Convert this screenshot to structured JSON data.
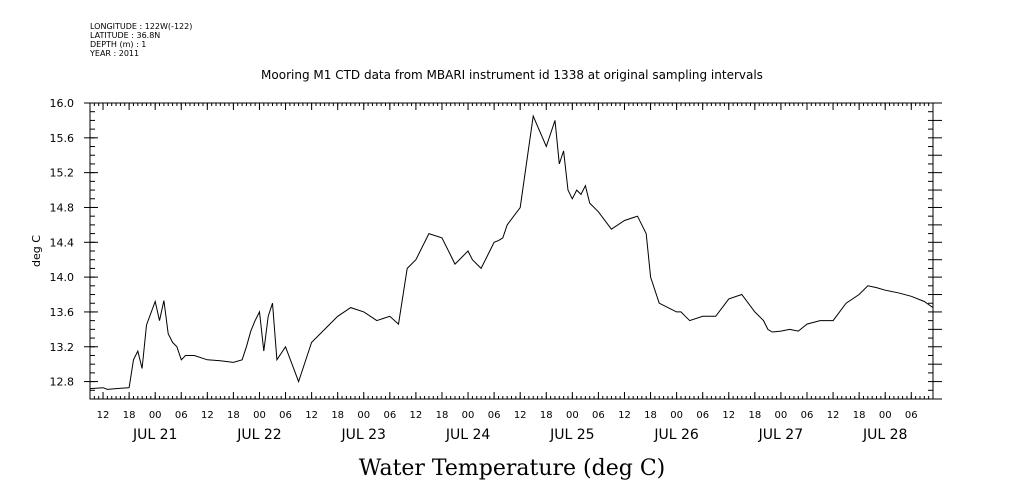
{
  "meta": {
    "longitude": "LONGITUDE : 122W(-122)",
    "latitude": "LATITUDE : 36.8N",
    "depth": "DEPTH (m) : 1",
    "year": "YEAR : 2011"
  },
  "chart_data": {
    "type": "line",
    "title": "Mooring M1 CTD data from MBARI instrument id 1338 at original sampling intervals",
    "xlabel": "Water Temperature (deg C)",
    "ylabel": "deg C",
    "ylim": [
      12.6,
      16.0
    ],
    "yticks": [
      12.8,
      13.2,
      13.6,
      14.0,
      14.4,
      14.8,
      15.2,
      15.6,
      16.0
    ],
    "ytick_labels": [
      "12.8",
      "13.2",
      "13.6",
      "14.0",
      "14.4",
      "14.8",
      "15.2",
      "15.6",
      "16.0"
    ],
    "xlim": [
      "2011-07-20T09:00",
      "2011-07-28T11:00"
    ],
    "hour_ticks": [
      {
        "t": "2011-07-20T12:00",
        "label": "12"
      },
      {
        "t": "2011-07-20T18:00",
        "label": "18"
      },
      {
        "t": "2011-07-21T00:00",
        "label": "00"
      },
      {
        "t": "2011-07-21T06:00",
        "label": "06"
      },
      {
        "t": "2011-07-21T12:00",
        "label": "12"
      },
      {
        "t": "2011-07-21T18:00",
        "label": "18"
      },
      {
        "t": "2011-07-22T00:00",
        "label": "00"
      },
      {
        "t": "2011-07-22T06:00",
        "label": "06"
      },
      {
        "t": "2011-07-22T12:00",
        "label": "12"
      },
      {
        "t": "2011-07-22T18:00",
        "label": "18"
      },
      {
        "t": "2011-07-23T00:00",
        "label": "00"
      },
      {
        "t": "2011-07-23T06:00",
        "label": "06"
      },
      {
        "t": "2011-07-23T12:00",
        "label": "12"
      },
      {
        "t": "2011-07-23T18:00",
        "label": "18"
      },
      {
        "t": "2011-07-24T00:00",
        "label": "00"
      },
      {
        "t": "2011-07-24T06:00",
        "label": "06"
      },
      {
        "t": "2011-07-24T12:00",
        "label": "12"
      },
      {
        "t": "2011-07-24T18:00",
        "label": "18"
      },
      {
        "t": "2011-07-25T00:00",
        "label": "00"
      },
      {
        "t": "2011-07-25T06:00",
        "label": "06"
      },
      {
        "t": "2011-07-25T12:00",
        "label": "12"
      },
      {
        "t": "2011-07-25T18:00",
        "label": "18"
      },
      {
        "t": "2011-07-26T00:00",
        "label": "00"
      },
      {
        "t": "2011-07-26T06:00",
        "label": "06"
      },
      {
        "t": "2011-07-26T12:00",
        "label": "12"
      },
      {
        "t": "2011-07-26T18:00",
        "label": "18"
      },
      {
        "t": "2011-07-27T00:00",
        "label": "00"
      },
      {
        "t": "2011-07-27T06:00",
        "label": "06"
      },
      {
        "t": "2011-07-27T12:00",
        "label": "12"
      },
      {
        "t": "2011-07-27T18:00",
        "label": "18"
      },
      {
        "t": "2011-07-28T00:00",
        "label": "00"
      },
      {
        "t": "2011-07-28T06:00",
        "label": "06"
      }
    ],
    "date_labels": [
      {
        "t": "2011-07-21T00:00",
        "label": "JUL 21"
      },
      {
        "t": "2011-07-22T00:00",
        "label": "JUL 22"
      },
      {
        "t": "2011-07-23T00:00",
        "label": "JUL 23"
      },
      {
        "t": "2011-07-24T00:00",
        "label": "JUL 24"
      },
      {
        "t": "2011-07-25T00:00",
        "label": "JUL 25"
      },
      {
        "t": "2011-07-26T00:00",
        "label": "JUL 26"
      },
      {
        "t": "2011-07-27T00:00",
        "label": "JUL 27"
      },
      {
        "t": "2011-07-28T00:00",
        "label": "JUL 28"
      }
    ],
    "series": [
      {
        "x": [
          "2011-07-20T09:00",
          "2011-07-20T12:00",
          "2011-07-20T13:00",
          "2011-07-20T15:00",
          "2011-07-20T18:00",
          "2011-07-20T19:00",
          "2011-07-20T20:00",
          "2011-07-20T21:00",
          "2011-07-20T22:00",
          "2011-07-21T00:00",
          "2011-07-21T01:00",
          "2011-07-21T02:00",
          "2011-07-21T03:00",
          "2011-07-21T04:00",
          "2011-07-21T05:00",
          "2011-07-21T06:00",
          "2011-07-21T07:00",
          "2011-07-21T09:00",
          "2011-07-21T12:00",
          "2011-07-21T15:00",
          "2011-07-21T18:00",
          "2011-07-21T20:00",
          "2011-07-21T21:00",
          "2011-07-21T22:00",
          "2011-07-21T23:00",
          "2011-07-22T00:00",
          "2011-07-22T01:00",
          "2011-07-22T02:00",
          "2011-07-22T03:00",
          "2011-07-22T04:00",
          "2011-07-22T06:00",
          "2011-07-22T09:00",
          "2011-07-22T12:00",
          "2011-07-22T15:00",
          "2011-07-22T18:00",
          "2011-07-22T21:00",
          "2011-07-23T00:00",
          "2011-07-23T03:00",
          "2011-07-23T06:00",
          "2011-07-23T08:00",
          "2011-07-23T10:00",
          "2011-07-23T12:00",
          "2011-07-23T15:00",
          "2011-07-23T18:00",
          "2011-07-23T20:00",
          "2011-07-23T21:00",
          "2011-07-23T23:00",
          "2011-07-24T00:00",
          "2011-07-24T01:00",
          "2011-07-24T03:00",
          "2011-07-24T05:00",
          "2011-07-24T06:00",
          "2011-07-24T07:00",
          "2011-07-24T08:00",
          "2011-07-24T09:00",
          "2011-07-24T12:00",
          "2011-07-24T15:00",
          "2011-07-24T18:00",
          "2011-07-24T20:00",
          "2011-07-24T21:00",
          "2011-07-24T22:00",
          "2011-07-24T23:00",
          "2011-07-25T00:00",
          "2011-07-25T01:00",
          "2011-07-25T02:00",
          "2011-07-25T03:00",
          "2011-07-25T04:00",
          "2011-07-25T06:00",
          "2011-07-25T09:00",
          "2011-07-25T12:00",
          "2011-07-25T15:00",
          "2011-07-25T17:00",
          "2011-07-25T18:00",
          "2011-07-25T20:00",
          "2011-07-25T22:00",
          "2011-07-26T00:00",
          "2011-07-26T01:00",
          "2011-07-26T02:00",
          "2011-07-26T03:00",
          "2011-07-26T06:00",
          "2011-07-26T09:00",
          "2011-07-26T12:00",
          "2011-07-26T15:00",
          "2011-07-26T18:00",
          "2011-07-26T20:00",
          "2011-07-26T21:00",
          "2011-07-26T22:00",
          "2011-07-27T00:00",
          "2011-07-27T02:00",
          "2011-07-27T04:00",
          "2011-07-27T06:00",
          "2011-07-27T09:00",
          "2011-07-27T12:00",
          "2011-07-27T15:00",
          "2011-07-27T18:00",
          "2011-07-27T20:00",
          "2011-07-27T22:00",
          "2011-07-28T00:00",
          "2011-07-28T03:00",
          "2011-07-28T06:00",
          "2011-07-28T09:00",
          "2011-07-28T11:00"
        ],
        "values": [
          12.72,
          12.73,
          12.71,
          12.72,
          12.73,
          13.05,
          13.15,
          12.95,
          13.45,
          13.72,
          13.5,
          13.73,
          13.35,
          13.25,
          13.2,
          13.05,
          13.1,
          13.1,
          13.05,
          13.04,
          13.02,
          13.05,
          13.2,
          13.38,
          13.5,
          13.6,
          13.15,
          13.55,
          13.7,
          13.05,
          13.2,
          12.8,
          13.25,
          13.4,
          13.55,
          13.65,
          13.6,
          13.5,
          13.55,
          13.46,
          14.1,
          14.2,
          14.5,
          14.45,
          14.25,
          14.15,
          14.25,
          14.3,
          14.2,
          14.1,
          14.3,
          14.4,
          14.42,
          14.45,
          14.6,
          14.8,
          15.85,
          15.5,
          15.8,
          15.3,
          15.45,
          15.0,
          14.9,
          15.0,
          14.95,
          15.05,
          14.85,
          14.75,
          14.55,
          14.65,
          14.7,
          14.5,
          14.0,
          13.7,
          13.65,
          13.6,
          13.6,
          13.55,
          13.5,
          13.55,
          13.55,
          13.75,
          13.8,
          13.6,
          13.5,
          13.4,
          13.37,
          13.38,
          13.4,
          13.38,
          13.46,
          13.5,
          13.5,
          13.7,
          13.8,
          13.9,
          13.88,
          13.85,
          13.82,
          13.78,
          13.72,
          13.65
        ]
      }
    ]
  }
}
